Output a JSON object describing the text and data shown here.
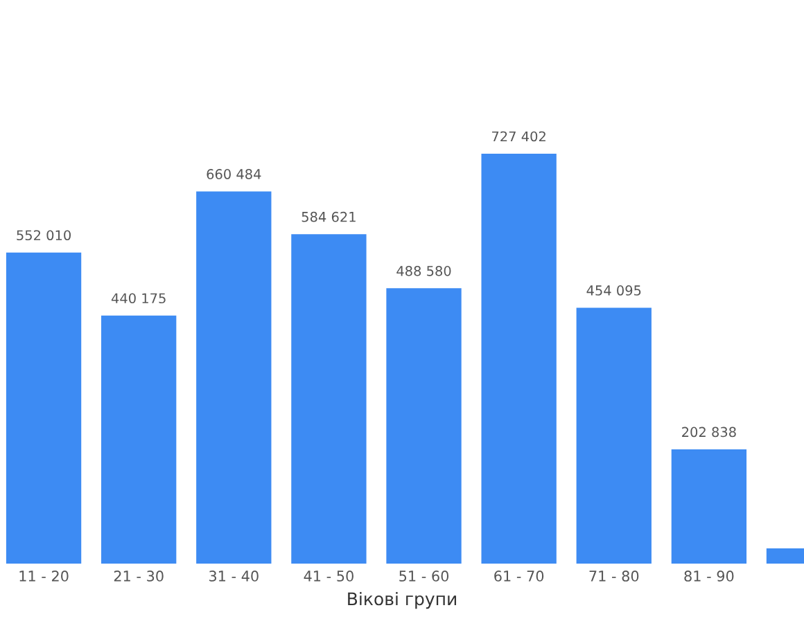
{
  "chart_data": {
    "type": "bar",
    "xlabel": "Вікові групи",
    "categories": [
      "11 - 20",
      "21 - 30",
      "31 - 40",
      "41 - 50",
      "51 - 60",
      "61 - 70",
      "71 - 80",
      "81 - 90",
      null
    ],
    "values": [
      552010,
      440175,
      660484,
      584621,
      488580,
      727402,
      454095,
      202838,
      27000
    ],
    "value_labels": [
      "552 010",
      "440 175",
      "660 484",
      "584 621",
      "488 580",
      "727 402",
      "454 095",
      "202 838",
      null
    ],
    "color": "#3d8bf3",
    "tick_labels": "x",
    "grid": false,
    "legend": false
  }
}
